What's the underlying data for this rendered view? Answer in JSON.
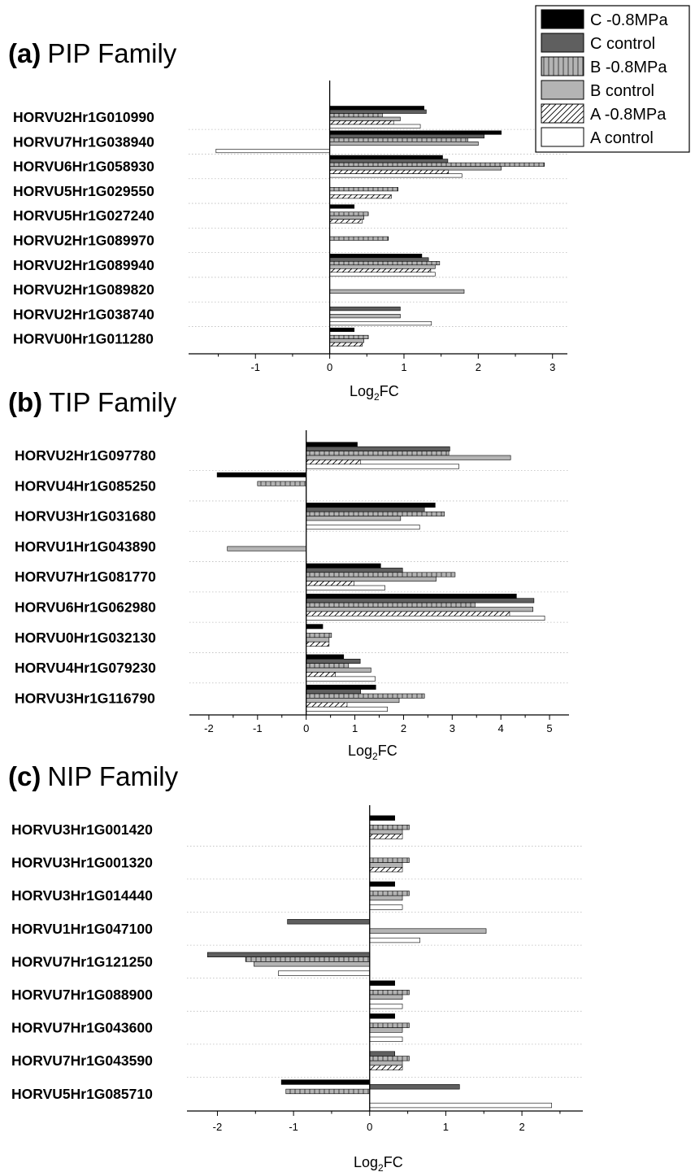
{
  "legend": {
    "items": [
      {
        "label": "C -0.8MPa",
        "key": "c_stress"
      },
      {
        "label": "C control",
        "key": "c_control"
      },
      {
        "label": "B -0.8MPa",
        "key": "b_stress"
      },
      {
        "label": "B control",
        "key": "b_control"
      },
      {
        "label": "A -0.8MPa",
        "key": "a_stress"
      },
      {
        "label": "A control",
        "key": "a_control"
      }
    ]
  },
  "styles": {
    "c_stress": {
      "fill": "#000000",
      "pattern": "solid"
    },
    "c_control": {
      "fill": "#5f5f5f",
      "pattern": "solid"
    },
    "b_stress": {
      "fill": "#b4b4b4",
      "pattern": "vertical-lines"
    },
    "b_control": {
      "fill": "#b4b4b4",
      "pattern": "solid"
    },
    "a_stress": {
      "fill": "#ffffff",
      "pattern": "diagonal-hatch"
    },
    "a_control": {
      "fill": "#ffffff",
      "pattern": "solid"
    }
  },
  "chart_data": [
    {
      "type": "bar",
      "orientation": "horizontal",
      "panel_tag": "(a)",
      "title": "PIP Family",
      "xlabel_main": "Log",
      "xlabel_sub": "2",
      "xlabel_tail": "FC",
      "xlim": [
        -1.9,
        3.2
      ],
      "xticks": [
        -1,
        0,
        1,
        2,
        3
      ],
      "xticklabels": [
        "-1",
        "0",
        "1",
        "2",
        "3"
      ],
      "categories": [
        "HORVU2Hr1G010990",
        "HORVU7Hr1G038940",
        "HORVU6Hr1G058930",
        "HORVU5Hr1G029550",
        "HORVU5Hr1G027240",
        "HORVU2Hr1G089970",
        "HORVU2Hr1G089940",
        "HORVU2Hr1G089820",
        "HORVU2Hr1G038740",
        "HORVU0Hr1G011280"
      ],
      "series": [
        {
          "name": "C -0.8MPa",
          "key": "c_stress",
          "values": [
            1.27,
            2.31,
            1.52,
            null,
            0.33,
            null,
            1.24,
            null,
            null,
            0.33
          ]
        },
        {
          "name": "C control",
          "key": "c_control",
          "values": [
            1.3,
            2.08,
            1.59,
            null,
            null,
            null,
            1.33,
            null,
            0.95,
            null
          ]
        },
        {
          "name": "B -0.8MPa",
          "key": "b_stress",
          "values": [
            0.71,
            1.86,
            2.89,
            0.92,
            0.52,
            0.79,
            1.48,
            null,
            null,
            0.52
          ]
        },
        {
          "name": "B control",
          "key": "b_control",
          "values": [
            0.95,
            2.0,
            2.31,
            null,
            0.46,
            null,
            1.42,
            1.81,
            0.95,
            0.46
          ]
        },
        {
          "name": "A -0.8MPa",
          "key": "a_stress",
          "values": [
            0.86,
            null,
            1.6,
            0.83,
            0.44,
            null,
            1.36,
            null,
            null,
            0.44
          ]
        },
        {
          "name": "A control",
          "key": "a_control",
          "values": [
            1.22,
            -1.53,
            1.78,
            null,
            null,
            null,
            1.42,
            null,
            1.37,
            null
          ]
        }
      ]
    },
    {
      "type": "bar",
      "orientation": "horizontal",
      "panel_tag": "(b)",
      "title": "TIP Family",
      "xlabel_main": "Log",
      "xlabel_sub": "2",
      "xlabel_tail": "FC",
      "xlim": [
        -2.4,
        5.4
      ],
      "xticks": [
        -2,
        -1,
        0,
        1,
        2,
        3,
        4,
        5
      ],
      "xticklabels": [
        "-2",
        "-1",
        "0",
        "1",
        "2",
        "3",
        "4",
        "5"
      ],
      "categories": [
        "HORVU2Hr1G097780",
        "HORVU4Hr1G085250",
        "HORVU3Hr1G031680",
        "HORVU1Hr1G043890",
        "HORVU7Hr1G081770",
        "HORVU6Hr1G062980",
        "HORVU0Hr1G032130",
        "HORVU4Hr1G079230",
        "HORVU3Hr1G116790"
      ],
      "series": [
        {
          "name": "C -0.8MPa",
          "key": "c_stress",
          "values": [
            1.05,
            -1.83,
            2.65,
            null,
            1.53,
            4.32,
            0.34,
            0.77,
            1.43
          ]
        },
        {
          "name": "C control",
          "key": "c_control",
          "values": [
            2.95,
            null,
            2.43,
            null,
            1.98,
            4.68,
            null,
            1.11,
            1.12
          ]
        },
        {
          "name": "B -0.8MPa",
          "key": "b_stress",
          "values": [
            2.93,
            -1.0,
            2.84,
            null,
            3.06,
            3.47,
            0.52,
            0.87,
            2.43
          ]
        },
        {
          "name": "B control",
          "key": "b_control",
          "values": [
            4.2,
            null,
            1.94,
            -1.62,
            2.67,
            4.66,
            0.47,
            1.33,
            1.91
          ]
        },
        {
          "name": "A -0.8MPa",
          "key": "a_stress",
          "values": [
            1.12,
            null,
            null,
            null,
            0.98,
            4.18,
            0.47,
            0.6,
            0.84
          ]
        },
        {
          "name": "A control",
          "key": "a_control",
          "values": [
            3.14,
            null,
            2.33,
            null,
            1.62,
            4.9,
            null,
            1.42,
            1.67
          ]
        }
      ]
    },
    {
      "type": "bar",
      "orientation": "horizontal",
      "panel_tag": "(c)",
      "title": "NIP Family",
      "xlabel_main": "Log",
      "xlabel_sub": "2",
      "xlabel_tail": "FC",
      "xlim": [
        -2.4,
        2.8
      ],
      "xticks": [
        -2,
        -1,
        0,
        1,
        2
      ],
      "xticklabels": [
        "-2",
        "-1",
        "0",
        "1",
        "2"
      ],
      "categories": [
        "HORVU3Hr1G001420",
        "HORVU3Hr1G001320",
        "HORVU3Hr1G014440",
        "HORVU1Hr1G047100",
        "HORVU7Hr1G121250",
        "HORVU7Hr1G088900",
        "HORVU7Hr1G043600",
        "HORVU7Hr1G043590",
        "HORVU5Hr1G085710"
      ],
      "series": [
        {
          "name": "C -0.8MPa",
          "key": "c_stress",
          "values": [
            0.33,
            null,
            0.33,
            null,
            null,
            0.33,
            0.33,
            null,
            -1.16
          ]
        },
        {
          "name": "C control",
          "key": "c_control",
          "values": [
            null,
            null,
            null,
            -1.08,
            -2.13,
            null,
            null,
            0.33,
            1.18
          ]
        },
        {
          "name": "B -0.8MPa",
          "key": "b_stress",
          "values": [
            0.52,
            0.52,
            0.52,
            null,
            -1.63,
            0.52,
            0.52,
            0.52,
            -1.1
          ]
        },
        {
          "name": "B control",
          "key": "b_control",
          "values": [
            0.43,
            0.43,
            0.43,
            1.53,
            -1.52,
            0.43,
            0.43,
            0.43,
            null
          ]
        },
        {
          "name": "A -0.8MPa",
          "key": "a_stress",
          "values": [
            0.43,
            0.43,
            null,
            null,
            null,
            null,
            null,
            0.43,
            null
          ]
        },
        {
          "name": "A control",
          "key": "a_control",
          "values": [
            null,
            null,
            0.43,
            0.66,
            -1.2,
            0.43,
            0.43,
            null,
            2.39
          ]
        }
      ]
    }
  ]
}
